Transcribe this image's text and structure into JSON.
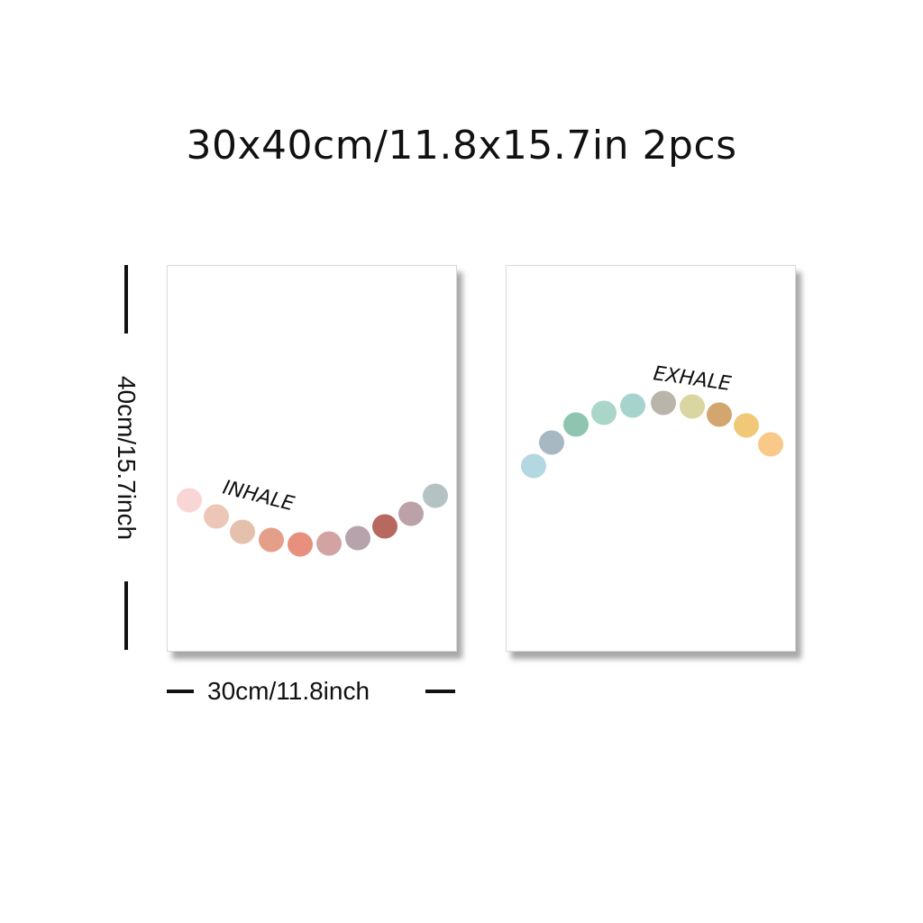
{
  "headline": "30x40cm/11.8x15.7in 2pcs",
  "height_label": "40cm/15.7inch",
  "width_label": "30cm/11.8inch",
  "posters": [
    {
      "word": "INHALE",
      "dot_colors": [
        "#f9d6d5",
        "#ecc7b8",
        "#e5c0ad",
        "#e59e88",
        "#e88f7d",
        "#d3a3a3",
        "#b7a3ab",
        "#b7685f",
        "#bba2a8",
        "#b5c2c4"
      ]
    },
    {
      "word": "EXHALE",
      "dot_colors": [
        "#b4d8e1",
        "#a8b8c2",
        "#8ec4b0",
        "#a9d6c8",
        "#a6d3cb",
        "#b9b5ab",
        "#d9d6a1",
        "#d2a66e",
        "#f0c877",
        "#f9c98a"
      ]
    }
  ]
}
